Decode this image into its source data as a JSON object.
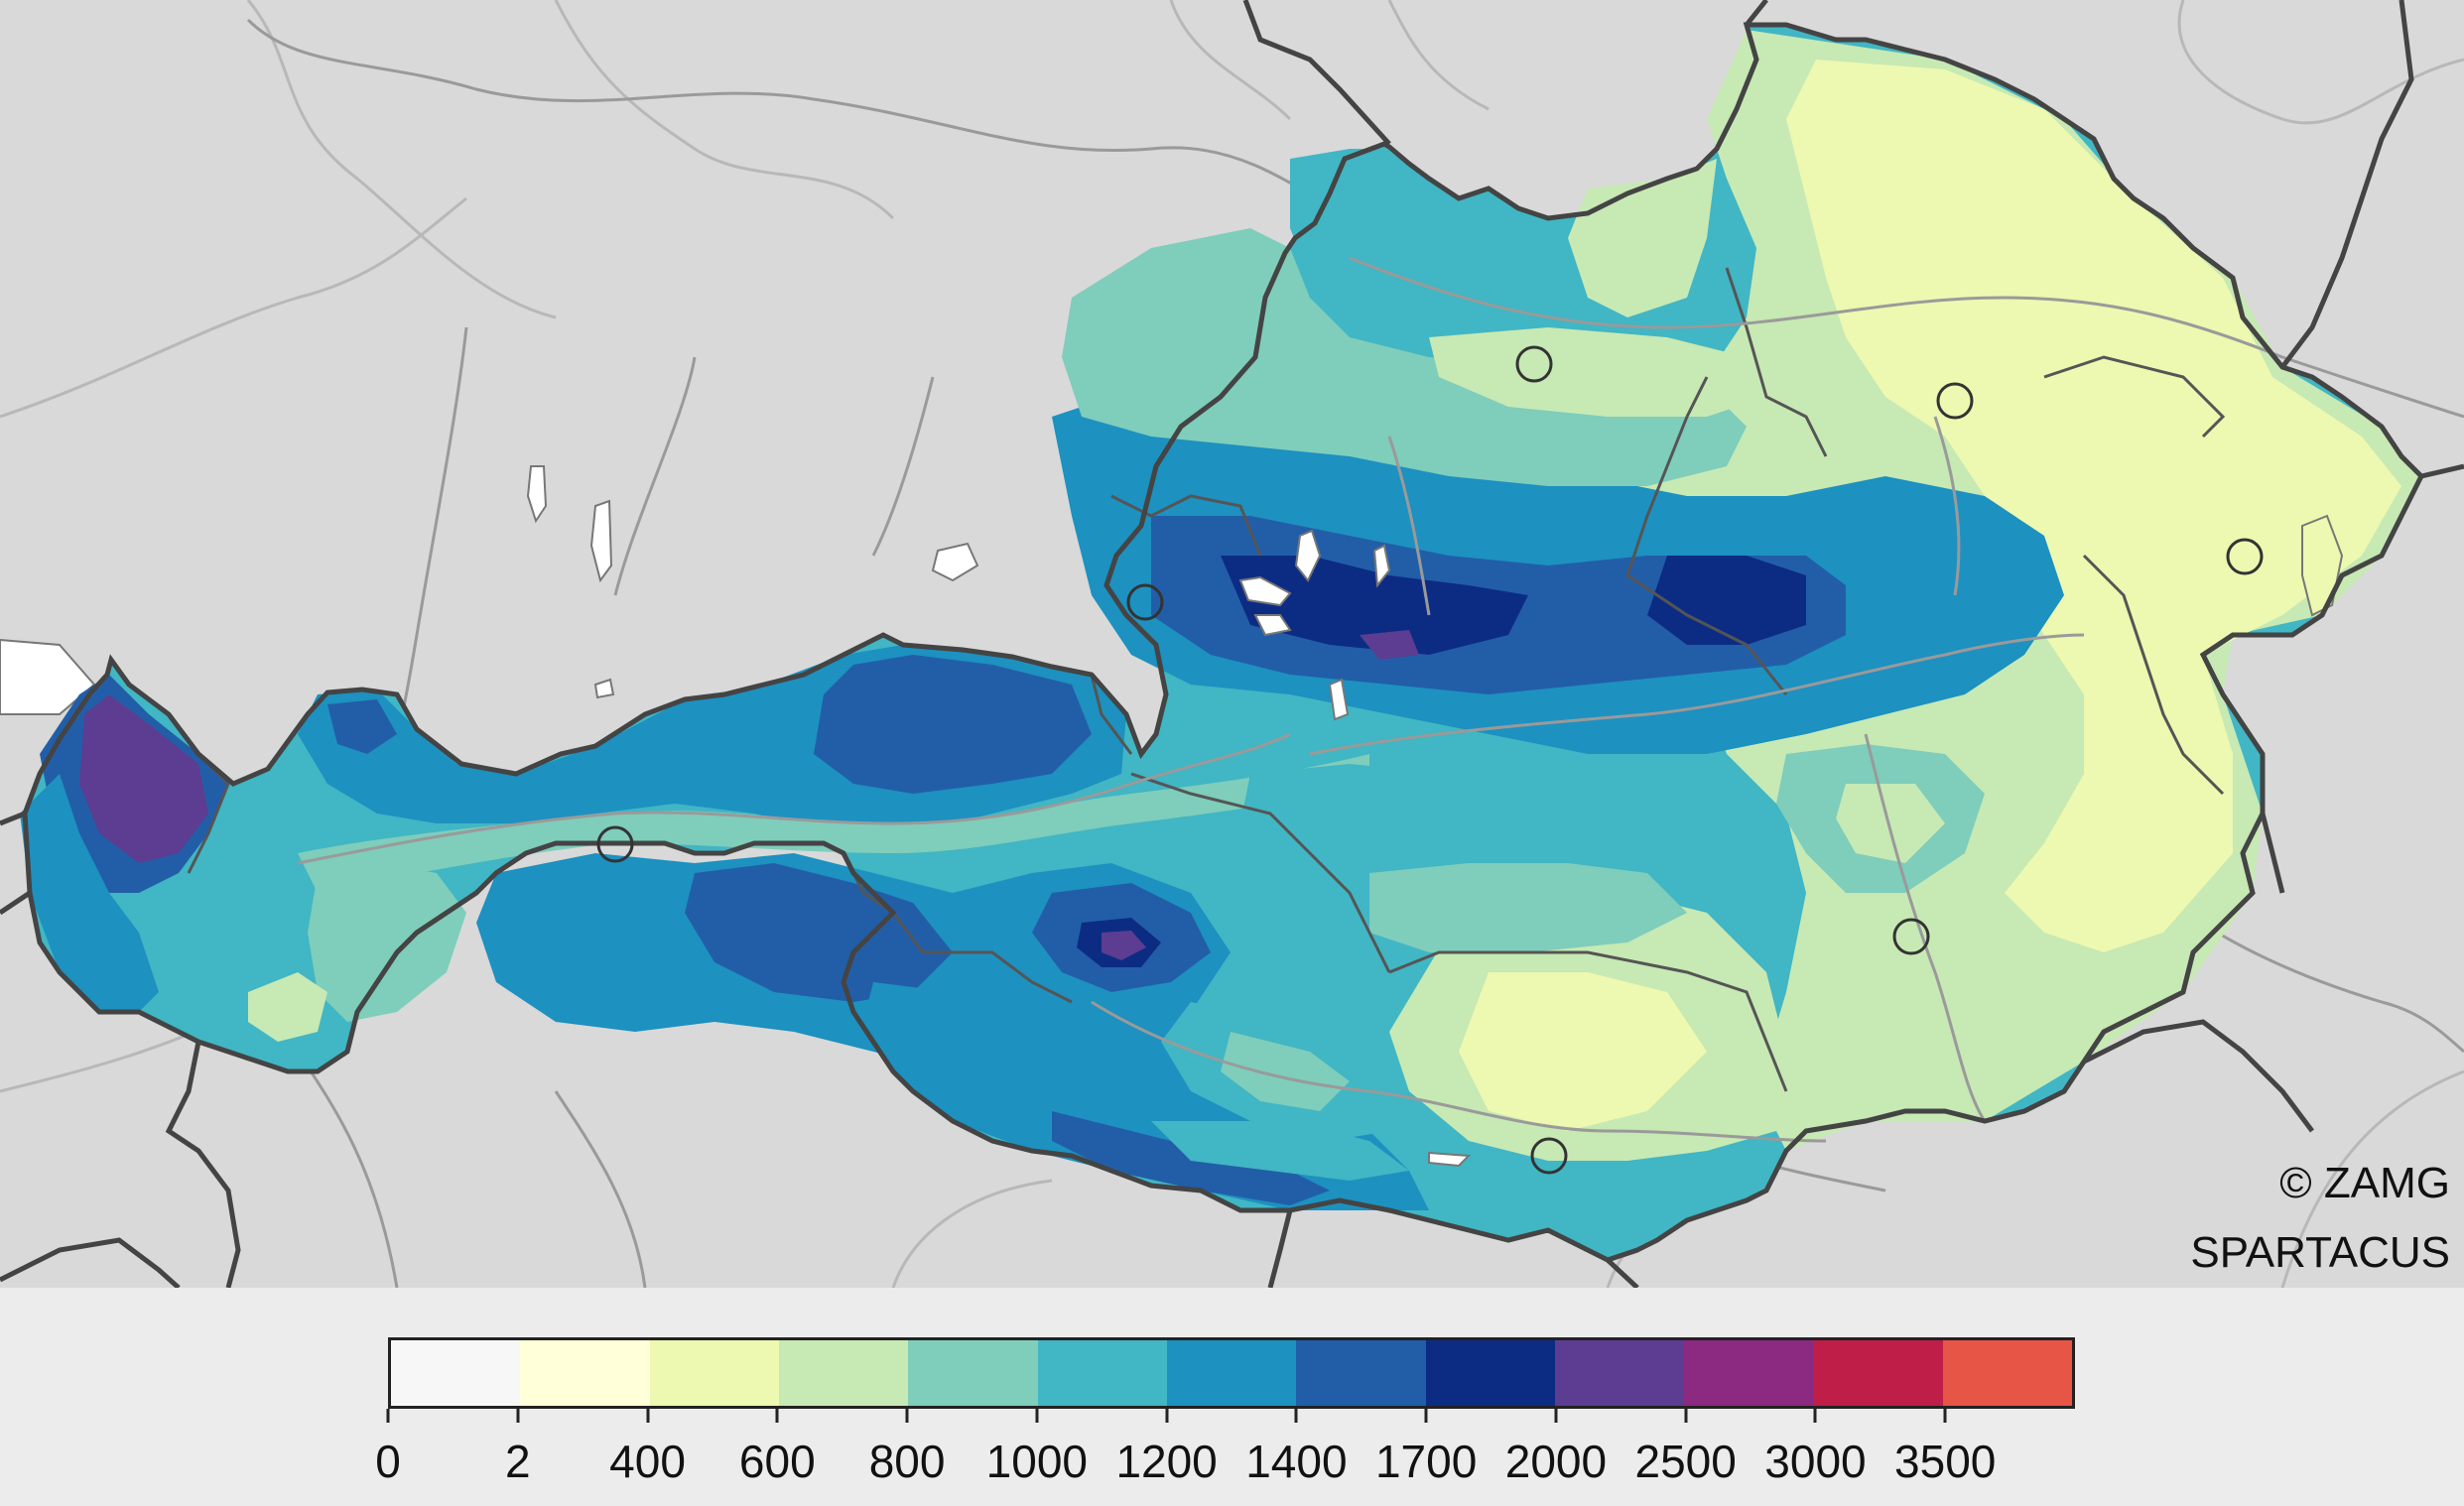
{
  "credits": {
    "line1": "© ZAMG",
    "line2": "SPARTACUS"
  },
  "legend": {
    "breaks": [
      "0",
      "2",
      "400",
      "600",
      "800",
      "1000",
      "1200",
      "1400",
      "1700",
      "2000",
      "2500",
      "3000",
      "3500"
    ],
    "colors": [
      "#f7f7f7",
      "#ffffd9",
      "#edf8b1",
      "#c7e9b4",
      "#7fcdbb",
      "#41b6c4",
      "#1d91c0",
      "#225ea8",
      "#0c2c84",
      "#5c3d91",
      "#8c2981",
      "#be1e48",
      "#e65546"
    ]
  },
  "map": {
    "background_color": "#d9d9d9",
    "country_fill": "#41b6c4",
    "border_color": "#444444",
    "river_color": "#9a9a9a",
    "lake_color": "#ffffff",
    "station_markers": 8
  }
}
